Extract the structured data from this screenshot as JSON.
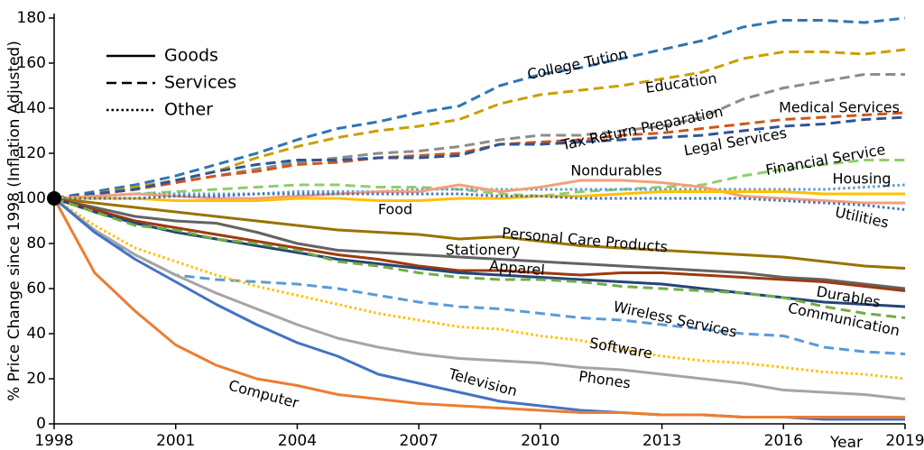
{
  "chart_data": {
    "type": "line",
    "x_label": "Year",
    "y_label": "% Price Change since 1998 (Inflation Adjusted)",
    "x": [
      1998,
      1999,
      2000,
      2001,
      2002,
      2003,
      2004,
      2005,
      2006,
      2007,
      2008,
      2009,
      2010,
      2011,
      2012,
      2013,
      2014,
      2015,
      2016,
      2017,
      2018,
      2019
    ],
    "xlim": [
      1998,
      2019
    ],
    "xticks": [
      1998,
      2001,
      2004,
      2007,
      2010,
      2013,
      2016,
      2019
    ],
    "ylim": [
      0,
      180
    ],
    "yticks": [
      0,
      20,
      40,
      60,
      80,
      100,
      120,
      140,
      160,
      180
    ],
    "legend": [
      {
        "label": "Goods",
        "style": "solid"
      },
      {
        "label": "Services",
        "style": "dashed"
      },
      {
        "label": "Other",
        "style": "dotted"
      }
    ],
    "series": [
      {
        "name": "College Tution",
        "style": "dashed",
        "color": "#2e75b6",
        "values": [
          100,
          103,
          106,
          110,
          115,
          120,
          126,
          131,
          134,
          138,
          141,
          150,
          155,
          158,
          162,
          166,
          170,
          176,
          179,
          179,
          178,
          180
        ]
      },
      {
        "name": "Education",
        "style": "dashed",
        "color": "#c9a000",
        "values": [
          100,
          102,
          105,
          108,
          112,
          118,
          123,
          127,
          130,
          132,
          135,
          142,
          146,
          148,
          150,
          153,
          156,
          162,
          165,
          165,
          164,
          166
        ]
      },
      {
        "name": "Tax Return Preparation",
        "style": "dashed",
        "color": "#8c8c8c",
        "values": [
          100,
          102,
          104,
          107,
          110,
          113,
          116,
          118,
          120,
          121,
          123,
          126,
          128,
          128,
          130,
          132,
          136,
          144,
          149,
          152,
          155,
          155
        ]
      },
      {
        "name": "Medical Services",
        "style": "dashed",
        "color": "#d0561a",
        "values": [
          100,
          102,
          104,
          107,
          110,
          112,
          115,
          116,
          118,
          119,
          120,
          124,
          125,
          126,
          128,
          129,
          131,
          133,
          135,
          136,
          137,
          138
        ]
      },
      {
        "name": "Legal Services",
        "style": "dashed",
        "color": "#2f5597",
        "values": [
          100,
          102,
          104,
          108,
          112,
          115,
          117,
          117,
          118,
          118,
          119,
          124,
          124,
          125,
          126,
          127,
          128,
          130,
          132,
          133,
          135,
          136
        ]
      },
      {
        "name": "Financial Service",
        "style": "dashed",
        "color": "#8fcf6a",
        "values": [
          100,
          101,
          102,
          103,
          104,
          105,
          106,
          106,
          105,
          105,
          104,
          102,
          101,
          103,
          104,
          105,
          106,
          110,
          113,
          115,
          117,
          117
        ]
      },
      {
        "name": "Housing",
        "style": "dotted",
        "color": "#5b9bd5",
        "values": [
          100,
          101,
          102,
          102,
          102,
          102,
          103,
          103,
          103,
          104,
          104,
          104,
          104,
          104,
          104,
          104,
          104,
          104,
          104,
          104,
          105,
          106
        ]
      },
      {
        "name": "Nondurables",
        "style": "solid",
        "color": "#f4a07a",
        "values": [
          100,
          101,
          102,
          101,
          100,
          100,
          101,
          102,
          103,
          103,
          106,
          103,
          105,
          108,
          108,
          107,
          105,
          101,
          100,
          99,
          98,
          98
        ]
      },
      {
        "name": "Food",
        "style": "solid",
        "color": "#ffc000",
        "values": [
          100,
          100,
          100,
          99,
          99,
          99,
          100,
          100,
          99,
          99,
          100,
          100,
          101,
          101,
          102,
          103,
          103,
          103,
          103,
          102,
          102,
          102
        ]
      },
      {
        "name": "Utilities",
        "style": "dotted",
        "color": "#4472c4",
        "values": [
          100,
          100,
          100,
          101,
          101,
          102,
          102,
          102,
          102,
          102,
          102,
          101,
          101,
          100,
          100,
          100,
          100,
          100,
          99,
          98,
          97,
          95
        ]
      },
      {
        "name": "Personal Care Products",
        "style": "solid",
        "color": "#997300",
        "values": [
          100,
          98,
          96,
          94,
          92,
          90,
          88,
          86,
          85,
          84,
          82,
          83,
          81,
          79,
          78,
          77,
          76,
          75,
          74,
          72,
          70,
          69
        ]
      },
      {
        "name": "Stationery",
        "style": "solid",
        "color": "#636363",
        "values": [
          100,
          96,
          92,
          90,
          89,
          85,
          80,
          77,
          76,
          75,
          74,
          73,
          72,
          71,
          70,
          69,
          68,
          67,
          65,
          64,
          62,
          60
        ]
      },
      {
        "name": "Apparel",
        "style": "solid",
        "color": "#9e3a0e",
        "values": [
          100,
          95,
          90,
          87,
          84,
          81,
          78,
          75,
          73,
          70,
          68,
          68,
          67,
          66,
          67,
          67,
          66,
          65,
          64,
          63,
          61,
          59
        ]
      },
      {
        "name": "Durables",
        "style": "solid",
        "color": "#264478",
        "values": [
          100,
          94,
          89,
          85,
          82,
          79,
          76,
          73,
          71,
          69,
          67,
          66,
          65,
          64,
          63,
          62,
          60,
          58,
          56,
          54,
          53,
          52
        ]
      },
      {
        "name": "Communication",
        "style": "dashed",
        "color": "#70ad47",
        "values": [
          100,
          94,
          88,
          86,
          82,
          80,
          77,
          72,
          70,
          67,
          65,
          64,
          64,
          63,
          61,
          60,
          59,
          58,
          56,
          52,
          49,
          47
        ]
      },
      {
        "name": "Wireless Services",
        "style": "dashed",
        "color": "#5b9bd5",
        "values": [
          100,
          85,
          75,
          66,
          64,
          63,
          62,
          60,
          57,
          54,
          52,
          51,
          49,
          47,
          46,
          44,
          42,
          40,
          39,
          34,
          32,
          31
        ]
      },
      {
        "name": "Software",
        "style": "dotted",
        "color": "#ffc000",
        "values": [
          100,
          88,
          78,
          72,
          66,
          61,
          57,
          53,
          49,
          46,
          43,
          42,
          39,
          37,
          33,
          30,
          28,
          27,
          25,
          23,
          22,
          20
        ]
      },
      {
        "name": "Phones",
        "style": "solid",
        "color": "#a5a5a5",
        "values": [
          100,
          86,
          75,
          66,
          58,
          51,
          44,
          38,
          34,
          31,
          29,
          28,
          27,
          25,
          24,
          22,
          20,
          18,
          15,
          14,
          13,
          11
        ]
      },
      {
        "name": "Television",
        "style": "solid",
        "color": "#4472c4",
        "values": [
          100,
          85,
          73,
          63,
          53,
          44,
          36,
          30,
          22,
          18,
          14,
          10,
          8,
          6,
          5,
          4,
          4,
          3,
          3,
          2,
          2,
          2
        ]
      },
      {
        "name": "Computer",
        "style": "solid",
        "color": "#ed7d31",
        "values": [
          100,
          67,
          50,
          35,
          26,
          20,
          17,
          13,
          11,
          9,
          8,
          7,
          6,
          5,
          5,
          4,
          4,
          3,
          3,
          3,
          3,
          3
        ]
      }
    ]
  }
}
